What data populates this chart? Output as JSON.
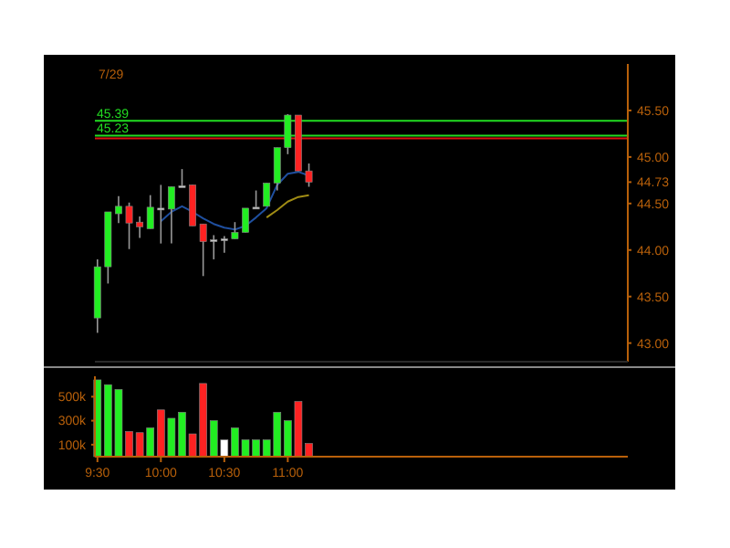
{
  "chart_data": [
    {
      "type": "candlestick",
      "title": "7/29",
      "x": [
        9.5,
        9.5833,
        9.6667,
        9.75,
        9.8333,
        9.9167,
        10,
        10.0833,
        10.1667,
        10.25,
        10.3333,
        10.4167,
        10.5,
        10.5833,
        10.6667,
        10.75,
        10.8333,
        10.9167,
        11,
        11.0833,
        11.1667
      ],
      "ohlc": [
        [
          43.27,
          43.9,
          43.11,
          43.82
        ],
        [
          43.82,
          44.41,
          43.64,
          44.41
        ],
        [
          44.39,
          44.58,
          44.29,
          44.47
        ],
        [
          44.47,
          44.51,
          44.01,
          44.29
        ],
        [
          44.3,
          44.36,
          44.13,
          44.25
        ],
        [
          44.23,
          44.59,
          44.23,
          44.46
        ],
        [
          44.45,
          44.7,
          44.07,
          44.45
        ],
        [
          44.44,
          44.68,
          44.07,
          44.68
        ],
        [
          44.69,
          44.87,
          44.68,
          44.69
        ],
        [
          44.7,
          44.7,
          44.26,
          44.26
        ],
        [
          44.28,
          44.28,
          43.72,
          44.09
        ],
        [
          44.11,
          44.16,
          43.9,
          44.11
        ],
        [
          44.12,
          44.15,
          43.97,
          44.12
        ],
        [
          44.12,
          44.3,
          44.12,
          44.19
        ],
        [
          44.19,
          44.45,
          44.19,
          44.45
        ],
        [
          44.46,
          44.64,
          44.46,
          44.46
        ],
        [
          44.47,
          44.72,
          44.47,
          44.72
        ],
        [
          44.72,
          45.1,
          44.64,
          45.1
        ],
        [
          45.1,
          45.46,
          45.03,
          45.45
        ],
        [
          45.45,
          45.45,
          44.85,
          44.85
        ],
        [
          44.85,
          44.93,
          44.68,
          44.73
        ]
      ],
      "colors": [
        "#22ee22",
        "#22ee22",
        "#22ee22",
        "#ff2222",
        "#ff2222",
        "#22ee22",
        "#c8c8c8",
        "#22ee22",
        "#c8c8c8",
        "#ff2222",
        "#ff2222",
        "#c8c8c8",
        "#c8c8c8",
        "#22ee22",
        "#22ee22",
        "#c8c8c8",
        "#22ee22",
        "#22ee22",
        "#22ee22",
        "#ff2222",
        "#ff2222"
      ],
      "series": [
        {
          "type": "line",
          "color": "#1f4f9f",
          "x": [
            10,
            10.0833,
            10.1667,
            10.25,
            10.3333,
            10.4167,
            10.5,
            10.5833,
            10.6667,
            10.75,
            10.8333,
            10.9167,
            11,
            11.0833,
            11.1667
          ],
          "values": [
            44.31,
            44.41,
            44.47,
            44.41,
            44.34,
            44.28,
            44.24,
            44.22,
            44.26,
            44.35,
            44.45,
            44.7,
            44.82,
            44.84,
            44.8
          ]
        },
        {
          "type": "line",
          "color": "#a08c14",
          "x": [
            10.8333,
            10.9167,
            11,
            11.0833,
            11.1667
          ],
          "values": [
            44.35,
            44.43,
            44.52,
            44.57,
            44.59
          ]
        }
      ],
      "ref_lines": [
        {
          "axis": "y",
          "value": 45.39,
          "label": "45.39",
          "color": "#22dd22"
        },
        {
          "axis": "y",
          "value": 45.23,
          "label": "45.23",
          "color": "#22dd22"
        },
        {
          "axis": "y",
          "value": 45.2,
          "label": null,
          "color": "#dd1111"
        }
      ],
      "xlim": [
        9.48,
        13.68
      ],
      "ylim": [
        42.8,
        46.0
      ],
      "yticks": [
        {
          "value": 43,
          "label": "43.00"
        },
        {
          "value": 43.5,
          "label": "43.50"
        },
        {
          "value": 44,
          "label": "44.00"
        },
        {
          "value": 44.5,
          "label": "44.50"
        },
        {
          "value": 44.73,
          "label": "44.73"
        },
        {
          "value": 45,
          "label": "45.00"
        },
        {
          "value": 45.5,
          "label": "45.50"
        }
      ],
      "tick_labels": "y"
    },
    {
      "type": "bar",
      "x": [
        9.5,
        9.5833,
        9.6667,
        9.75,
        9.8333,
        9.9167,
        10,
        10.0833,
        10.1667,
        10.25,
        10.3333,
        10.4167,
        10.5,
        10.5833,
        10.6667,
        10.75,
        10.8333,
        10.9167,
        11,
        11.0833,
        11.1667
      ],
      "values": [
        640000,
        600000,
        560000,
        210000,
        200000,
        240000,
        390000,
        320000,
        370000,
        190000,
        610000,
        300000,
        140000,
        240000,
        140000,
        140000,
        140000,
        370000,
        300000,
        460000,
        110000
      ],
      "colors": [
        "#22ee22",
        "#22ee22",
        "#22ee22",
        "#ff2222",
        "#ff2222",
        "#22ee22",
        "#ff2222",
        "#22ee22",
        "#22ee22",
        "#ff2222",
        "#ff2222",
        "#22ee22",
        "#ffffff",
        "#22ee22",
        "#22ee22",
        "#22ee22",
        "#22ee22",
        "#22ee22",
        "#22ee22",
        "#ff2222",
        "#ff2222"
      ],
      "xlim": [
        9.48,
        13.68
      ],
      "xticks": [
        {
          "value": 9.5,
          "label": "9:30"
        },
        {
          "value": 10,
          "label": "10:00"
        },
        {
          "value": 10.5,
          "label": "10:30"
        },
        {
          "value": 11,
          "label": "11:00"
        }
      ],
      "ylim": [
        0,
        670000
      ],
      "yticks": [
        {
          "value": 100000,
          "label": "100k"
        },
        {
          "value": 300000,
          "label": "300k"
        },
        {
          "value": 500000,
          "label": "500k"
        }
      ]
    }
  ]
}
